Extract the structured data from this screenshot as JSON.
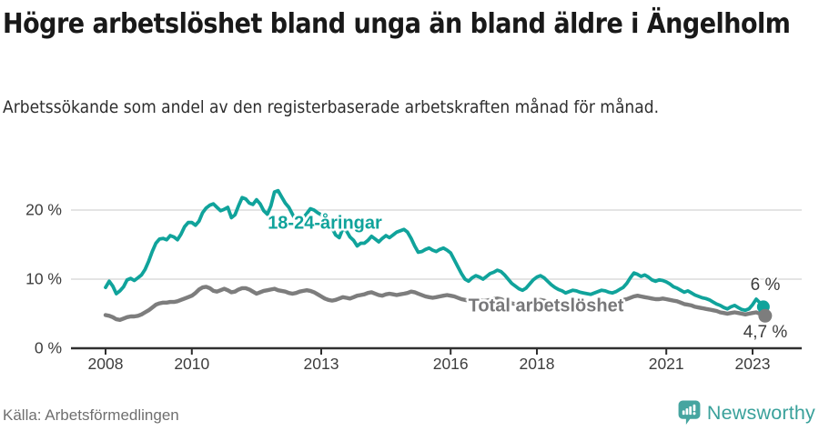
{
  "header": {
    "title": "Högre arbetslöshet bland unga än bland äldre i Ängelholm",
    "subtitle": "Arbetssökande som andel av den registerbaserade arbetskraften månad för månad."
  },
  "footer": {
    "source": "Källa: Arbetsförmedlingen",
    "brand": "Newsworthy"
  },
  "colors": {
    "young_line": "#10a39b",
    "total_line": "#7d7d7d",
    "grid": "#dcdcdc",
    "axis": "#2f2f2f",
    "logo_teal": "#46a5a0"
  },
  "chart_data": {
    "type": "line",
    "title": "Högre arbetslöshet bland unga än bland äldre i Ängelholm",
    "subtitle": "Arbetssökande som andel av den registerbaserade arbetskraften månad för månad.",
    "source": "Källa: Arbetsförmedlingen",
    "x_unit": "month",
    "x_start_year": 2008,
    "x_end": "2023-04",
    "ylim": [
      0,
      24
    ],
    "grid": "horizontal",
    "y_ticks": [
      {
        "value": 0,
        "label": "0 %"
      },
      {
        "value": 10,
        "label": "10 %"
      },
      {
        "value": 20,
        "label": "20 %"
      }
    ],
    "x_ticks": [
      {
        "year": 2008,
        "label": "2008"
      },
      {
        "year": 2010,
        "label": "2010"
      },
      {
        "year": 2013,
        "label": "2013"
      },
      {
        "year": 2016,
        "label": "2016"
      },
      {
        "year": 2018,
        "label": "2018"
      },
      {
        "year": 2021,
        "label": "2021"
      },
      {
        "year": 2023,
        "label": "2023"
      }
    ],
    "series": [
      {
        "name": "18-24-åringar",
        "color": "#10a39b",
        "end_label": "6 %",
        "end_value": 6.0,
        "values": [
          8.8,
          9.7,
          9.0,
          7.9,
          8.3,
          8.9,
          9.9,
          10.1,
          9.8,
          10.2,
          10.6,
          11.4,
          12.6,
          14.0,
          15.2,
          15.8,
          15.9,
          15.7,
          16.3,
          16.1,
          15.7,
          16.5,
          17.6,
          18.2,
          18.2,
          17.8,
          18.4,
          19.6,
          20.3,
          20.7,
          20.9,
          20.4,
          19.9,
          20.1,
          20.4,
          18.9,
          19.3,
          20.6,
          21.8,
          21.6,
          21.0,
          20.8,
          21.5,
          20.9,
          19.9,
          19.4,
          20.6,
          22.6,
          22.8,
          21.9,
          21.0,
          20.4,
          19.4,
          18.4,
          18.1,
          18.9,
          19.5,
          20.2,
          20.0,
          19.6,
          19.3,
          19.0,
          18.4,
          17.4,
          16.4,
          16.0,
          17.3,
          17.0,
          16.1,
          15.6,
          14.8,
          15.2,
          15.2,
          15.6,
          16.2,
          15.8,
          15.4,
          15.9,
          16.3,
          16.0,
          16.4,
          16.8,
          17.0,
          17.2,
          16.8,
          15.9,
          14.8,
          13.9,
          14.0,
          14.3,
          14.5,
          14.2,
          14.0,
          14.3,
          14.5,
          14.2,
          13.8,
          12.8,
          11.8,
          10.8,
          10.0,
          9.7,
          10.2,
          10.5,
          10.3,
          10.0,
          10.4,
          10.8,
          11.0,
          11.3,
          11.1,
          10.6,
          10.0,
          9.4,
          9.0,
          8.6,
          8.4,
          8.7,
          9.3,
          9.9,
          10.3,
          10.5,
          10.2,
          9.7,
          9.2,
          8.8,
          8.5,
          8.3,
          8.0,
          8.2,
          8.4,
          8.3,
          8.1,
          8.0,
          7.9,
          7.8,
          8.0,
          8.2,
          8.4,
          8.3,
          8.1,
          8.0,
          8.2,
          8.5,
          8.8,
          9.4,
          10.2,
          10.9,
          10.7,
          10.4,
          10.6,
          10.3,
          9.9,
          9.7,
          9.9,
          9.8,
          9.6,
          9.3,
          8.9,
          8.7,
          8.4,
          8.1,
          8.3,
          8.0,
          7.7,
          7.5,
          7.3,
          7.2,
          7.0,
          6.7,
          6.4,
          6.2,
          5.9,
          5.7,
          6.0,
          6.2,
          5.9,
          5.6,
          5.5,
          5.7,
          6.3,
          7.1,
          6.6,
          6.0
        ]
      },
      {
        "name": "Total arbetslöshet",
        "color": "#7d7d7d",
        "end_label": "4,7 %",
        "end_value": 4.7,
        "values": [
          4.8,
          4.7,
          4.5,
          4.2,
          4.1,
          4.3,
          4.5,
          4.6,
          4.6,
          4.7,
          4.9,
          5.2,
          5.5,
          5.9,
          6.3,
          6.5,
          6.6,
          6.6,
          6.7,
          6.7,
          6.8,
          7.0,
          7.2,
          7.4,
          7.6,
          8.0,
          8.5,
          8.8,
          8.9,
          8.7,
          8.3,
          8.2,
          8.4,
          8.6,
          8.4,
          8.1,
          8.2,
          8.5,
          8.7,
          8.7,
          8.5,
          8.2,
          7.9,
          8.1,
          8.3,
          8.4,
          8.5,
          8.6,
          8.4,
          8.3,
          8.2,
          8.0,
          7.9,
          8.0,
          8.2,
          8.3,
          8.4,
          8.3,
          8.1,
          7.8,
          7.5,
          7.2,
          7.0,
          6.9,
          7.0,
          7.2,
          7.4,
          7.3,
          7.2,
          7.4,
          7.6,
          7.7,
          7.8,
          8.0,
          8.1,
          7.9,
          7.7,
          7.6,
          7.8,
          7.9,
          7.8,
          7.7,
          7.8,
          7.9,
          8.0,
          8.2,
          8.1,
          7.9,
          7.7,
          7.5,
          7.4,
          7.3,
          7.4,
          7.5,
          7.6,
          7.7,
          7.6,
          7.5,
          7.3,
          7.1,
          7.0,
          6.9,
          7.0,
          7.1,
          7.0,
          6.9,
          6.9,
          7.0,
          7.1,
          7.2,
          7.1,
          6.9,
          6.7,
          6.5,
          6.4,
          6.3,
          6.3,
          6.4,
          6.6,
          6.8,
          6.9,
          7.0,
          6.9,
          6.7,
          6.5,
          6.4,
          6.3,
          6.2,
          6.1,
          6.2,
          6.3,
          6.4,
          6.5,
          6.6,
          6.5,
          6.4,
          6.4,
          6.5,
          6.6,
          6.6,
          6.5,
          6.6,
          6.7,
          6.9,
          7.0,
          7.1,
          7.3,
          7.5,
          7.6,
          7.5,
          7.4,
          7.3,
          7.2,
          7.1,
          7.1,
          7.2,
          7.1,
          7.0,
          6.9,
          6.8,
          6.6,
          6.4,
          6.3,
          6.2,
          6.0,
          5.9,
          5.8,
          5.7,
          5.6,
          5.5,
          5.4,
          5.2,
          5.1,
          5.0,
          5.1,
          5.2,
          5.1,
          5.0,
          4.9,
          5.0,
          5.1,
          5.2,
          5.0,
          4.7
        ]
      }
    ]
  }
}
